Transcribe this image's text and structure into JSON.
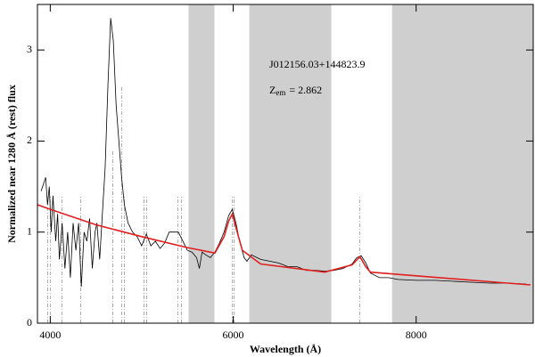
{
  "chart_data": {
    "type": "line",
    "xlabel": "Wavelength (Å)",
    "ylabel": "Normalized near 1280 Å (rest) flux",
    "object_name": "J012156.03+144823.9",
    "z_symbol": "Z",
    "z_subscript": "em",
    "z_value": "= 2.862",
    "xlim": [
      3860,
      9280
    ],
    "ylim": [
      0,
      3.5
    ],
    "xticks": [
      4000,
      6000,
      8000
    ],
    "yticks": [
      0,
      1,
      2,
      3
    ],
    "bands": [
      [
        5512,
        5795
      ],
      [
        6176,
        7073
      ],
      [
        7737,
        9280
      ]
    ],
    "band_color": "#cfcfcf",
    "markers": {
      "color": "#999999",
      "x": [
        3971,
        4000,
        4127,
        4332,
        4683,
        4780,
        4810,
        5024,
        5054,
        5395,
        5434,
        5990,
        6010,
        7385
      ],
      "top": [
        1.4,
        1.4,
        1.4,
        1.4,
        1.9,
        2.6,
        1.4,
        1.4,
        1.4,
        1.4,
        1.4,
        1.4,
        1.4,
        1.4
      ]
    },
    "series": [
      {
        "color": "#000000",
        "x": [
          3900,
          3950,
          3970,
          3990,
          4010,
          4030,
          4060,
          4080,
          4100,
          4130,
          4160,
          4190,
          4220,
          4250,
          4280,
          4310,
          4340,
          4370,
          4400,
          4430,
          4460,
          4490,
          4510,
          4540,
          4570,
          4600,
          4630,
          4660,
          4690,
          4720,
          4750,
          4780,
          4810,
          4850,
          4900,
          4950,
          5000,
          5050,
          5100,
          5150,
          5200,
          5250,
          5300,
          5350,
          5400,
          5450,
          5500,
          5550,
          5600,
          5630,
          5660,
          5700,
          5750,
          5800,
          5850,
          5900,
          5950,
          5990,
          6030,
          6070,
          6120,
          6150,
          6200,
          6300,
          6400,
          6500,
          6600,
          6700,
          6800,
          6900,
          7000,
          7100,
          7200,
          7300,
          7350,
          7400,
          7450,
          7500,
          7600,
          7700,
          7800,
          8000,
          8200,
          8400,
          8600,
          8800,
          9000,
          9200
        ],
        "values": [
          1.45,
          1.6,
          1.3,
          1.5,
          1.0,
          1.4,
          0.9,
          1.2,
          0.7,
          1.1,
          0.6,
          1.0,
          0.5,
          1.1,
          0.8,
          1.1,
          0.4,
          1.0,
          0.9,
          1.15,
          0.6,
          1.0,
          1.1,
          0.7,
          1.2,
          1.7,
          2.6,
          3.35,
          3.1,
          2.4,
          2.0,
          1.6,
          1.3,
          1.1,
          1.0,
          0.95,
          0.85,
          0.98,
          0.85,
          0.9,
          0.82,
          0.88,
          1.0,
          1.0,
          1.0,
          0.9,
          0.8,
          0.78,
          0.72,
          0.6,
          0.78,
          0.75,
          0.72,
          0.78,
          0.88,
          1.0,
          1.18,
          1.25,
          1.1,
          0.9,
          0.72,
          0.68,
          0.75,
          0.7,
          0.68,
          0.66,
          0.62,
          0.62,
          0.58,
          0.58,
          0.57,
          0.58,
          0.6,
          0.65,
          0.72,
          0.74,
          0.66,
          0.55,
          0.5,
          0.5,
          0.48,
          0.47,
          0.47,
          0.46,
          0.45,
          0.44,
          0.44,
          0.43
        ]
      },
      {
        "color": "#e02020",
        "x": [
          3860,
          4000,
          4500,
          5000,
          5500,
          5800,
          5900,
          5950,
          5990,
          6030,
          6100,
          6300,
          7000,
          7300,
          7385,
          7450,
          7500,
          8000,
          9000,
          9250
        ],
        "values": [
          1.3,
          1.25,
          1.08,
          0.95,
          0.83,
          0.77,
          0.95,
          1.12,
          1.2,
          1.05,
          0.8,
          0.65,
          0.56,
          0.64,
          0.73,
          0.62,
          0.56,
          0.52,
          0.44,
          0.42
        ]
      }
    ]
  }
}
